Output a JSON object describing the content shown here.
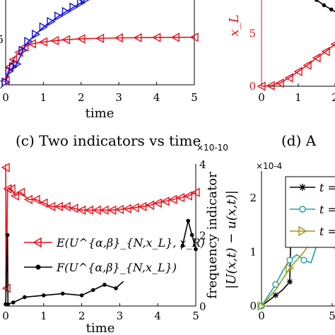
{
  "chart_data": [
    {
      "panel": "top-left",
      "type": "line",
      "xlabel": "time",
      "xlim": [
        0,
        5
      ],
      "x_ticks": [
        "0",
        "1",
        "2",
        "3",
        "4",
        "5"
      ],
      "y_ticks": [
        "0",
        "5"
      ],
      "series": [
        {
          "color": "#e8141e",
          "marker": "triangle-left",
          "x": [
            0,
            0.1,
            0.2,
            0.35,
            0.5,
            0.7,
            1.0,
            1.3,
            1.6,
            2.0,
            2.5,
            3.0,
            3.5,
            4.0,
            4.5,
            5.0
          ],
          "y": [
            0.5,
            2.0,
            2.8,
            3.6,
            4.2,
            4.55,
            4.75,
            4.9,
            5.0,
            5.1,
            5.15,
            5.2,
            5.22,
            5.24,
            5.26,
            5.27
          ]
        },
        {
          "color": "#1010e0",
          "marker": "triangle-right",
          "x": [
            0,
            0.1,
            0.2,
            0.3,
            0.45,
            0.6,
            0.8,
            1.0,
            1.2,
            1.4,
            1.6,
            1.8,
            2.0,
            2.1
          ],
          "y": [
            0.3,
            1.5,
            2.0,
            2.3,
            3.8,
            4.8,
            5.6,
            6.4,
            7.0,
            7.6,
            8.1,
            8.6,
            9.1,
            9.4
          ]
        }
      ]
    },
    {
      "panel": "top-right",
      "type": "line",
      "ylabel": "x_L",
      "xlim": [
        0,
        5
      ],
      "x_ticks": [
        "0",
        "1",
        "2"
      ],
      "y_ticks": [
        "0",
        "5"
      ],
      "series": [
        {
          "color": "#e8141e",
          "marker": "triangle-left",
          "x": [
            0,
            0.25,
            0.5,
            0.75,
            1.0,
            1.25,
            1.5,
            1.75,
            2.0,
            2.25,
            2.5,
            2.75,
            3.0
          ],
          "y": [
            0,
            0.05,
            0.3,
            0.8,
            1.4,
            2.0,
            2.7,
            3.3,
            4.0,
            4.6,
            5.2,
            5.7,
            6.2
          ]
        },
        {
          "color": "#000000",
          "marker": "dot",
          "x": [
            1.5,
            1.7,
            1.9,
            2.1,
            2.3,
            2.5,
            2.7,
            2.9,
            3.0
          ],
          "y": [
            8.2,
            7.7,
            7.3,
            6.9,
            6.6,
            6.3,
            6.1,
            5.9,
            5.8
          ]
        }
      ]
    },
    {
      "panel": "c",
      "type": "line",
      "title": "(c) Two indicators vs time",
      "xlabel": "time",
      "ylabel_right": "frequency indicator",
      "right_exponent": "×10-10",
      "xlim": [
        0,
        5
      ],
      "ylim_right": [
        0,
        4
      ],
      "x_ticks": [
        "0",
        "1",
        "2",
        "3",
        "4",
        "5"
      ],
      "y_right_ticks": [
        "0",
        "2",
        "4"
      ],
      "legend": [
        "E(U^{α,β}_{N,x_L}, x_R)",
        "F(U^{α,β}_{N,x_L})"
      ],
      "series": [
        {
          "name": "E(U^{α,β}_{N,x_L}, x_R)",
          "axis": "left",
          "color": "#e8141e",
          "marker": "triangle-left",
          "x": [
            0,
            0.02,
            0.05,
            0.15,
            0.25,
            0.4,
            0.6,
            0.8,
            1.0,
            1.2,
            1.4,
            1.6,
            1.8,
            2.0,
            2.2,
            2.4,
            2.6,
            2.8,
            3.0,
            3.2,
            3.4,
            3.6,
            3.8,
            4.0,
            4.2,
            4.4,
            4.6,
            4.8,
            5.0
          ],
          "y": [
            3.9,
            0.5,
            3.3,
            3.3,
            3.1,
            3.2,
            3.0,
            3.0,
            2.9,
            2.8,
            2.8,
            2.8,
            2.75,
            2.7,
            2.7,
            2.7,
            2.7,
            2.7,
            2.72,
            2.74,
            2.77,
            2.8,
            2.84,
            2.9,
            2.95,
            3.0,
            3.05,
            3.1,
            3.2
          ]
        },
        {
          "name": "F(U^{α,β}_{N,x_L})",
          "axis": "right",
          "color": "#000000",
          "marker": "dot",
          "x": [
            0,
            0.05,
            0.06,
            0.2,
            0.5,
            1.0,
            1.5,
            2.0,
            2.3,
            2.6,
            2.9,
            3.2,
            3.5,
            3.8,
            4.1,
            4.3,
            4.5,
            4.65,
            4.8,
            4.9,
            5.0
          ],
          "y": [
            0.05,
            2.0,
            0.05,
            0.1,
            0.25,
            0.3,
            0.35,
            0.3,
            0.45,
            0.6,
            0.5,
            0.8,
            0.75,
            1.1,
            1.05,
            1.4,
            1.35,
            1.7,
            2.4,
            2.0,
            1.6
          ]
        }
      ]
    },
    {
      "panel": "d",
      "type": "line",
      "title": "(d) A",
      "ylabel": "|U(x,t) − u(x,t)|",
      "y_exponent": "×10-4",
      "xlim": [
        0,
        8
      ],
      "ylim": [
        0,
        2.5
      ],
      "x_ticks": [
        "0",
        "5"
      ],
      "y_ticks": [
        "0",
        "1",
        "2"
      ],
      "legend": [
        "t =",
        "t =",
        "t ="
      ],
      "series": [
        {
          "name": "t =",
          "color": "#000000",
          "marker": "asterisk",
          "x": [
            0,
            0.5,
            1.0,
            1.5,
            2.0,
            2.1,
            2.5,
            3.0,
            3.5,
            4.0,
            4.5,
            5.0,
            5.5,
            6.0,
            6.5,
            7.0
          ],
          "y": [
            0,
            0.1,
            0.2,
            0.3,
            0.45,
            1.6,
            1.75,
            1.8,
            1.9,
            2.0,
            2.05,
            2.02,
            1.95,
            1.9,
            1.85,
            1.8
          ]
        },
        {
          "name": "t =",
          "color": "#1aa3a3",
          "marker": "circle",
          "x": [
            0,
            0.5,
            1.0,
            1.5,
            2.0,
            2.5,
            3.0,
            3.5,
            4.0,
            4.5,
            5.0,
            5.5,
            5.8,
            6.0,
            6.5,
            7.0
          ],
          "y": [
            0,
            0.2,
            0.4,
            0.65,
            0.85,
            0.95,
            0.85,
            0.8,
            1.2,
            1.45,
            1.25,
            0.8,
            0.55,
            1.05,
            1.12,
            1.12
          ]
        },
        {
          "name": "t =",
          "color": "#9a9a1a",
          "marker": "triangle-right",
          "x": [
            0,
            1.0,
            2.0,
            3.0,
            3.5,
            4.0,
            4.5,
            5.0,
            5.5,
            6.0,
            6.5,
            7.0
          ],
          "y": [
            0,
            0.3,
            0.7,
            1.0,
            1.2,
            1.4,
            1.6,
            1.75,
            1.88,
            1.97,
            2.0,
            1.97
          ]
        }
      ]
    }
  ]
}
